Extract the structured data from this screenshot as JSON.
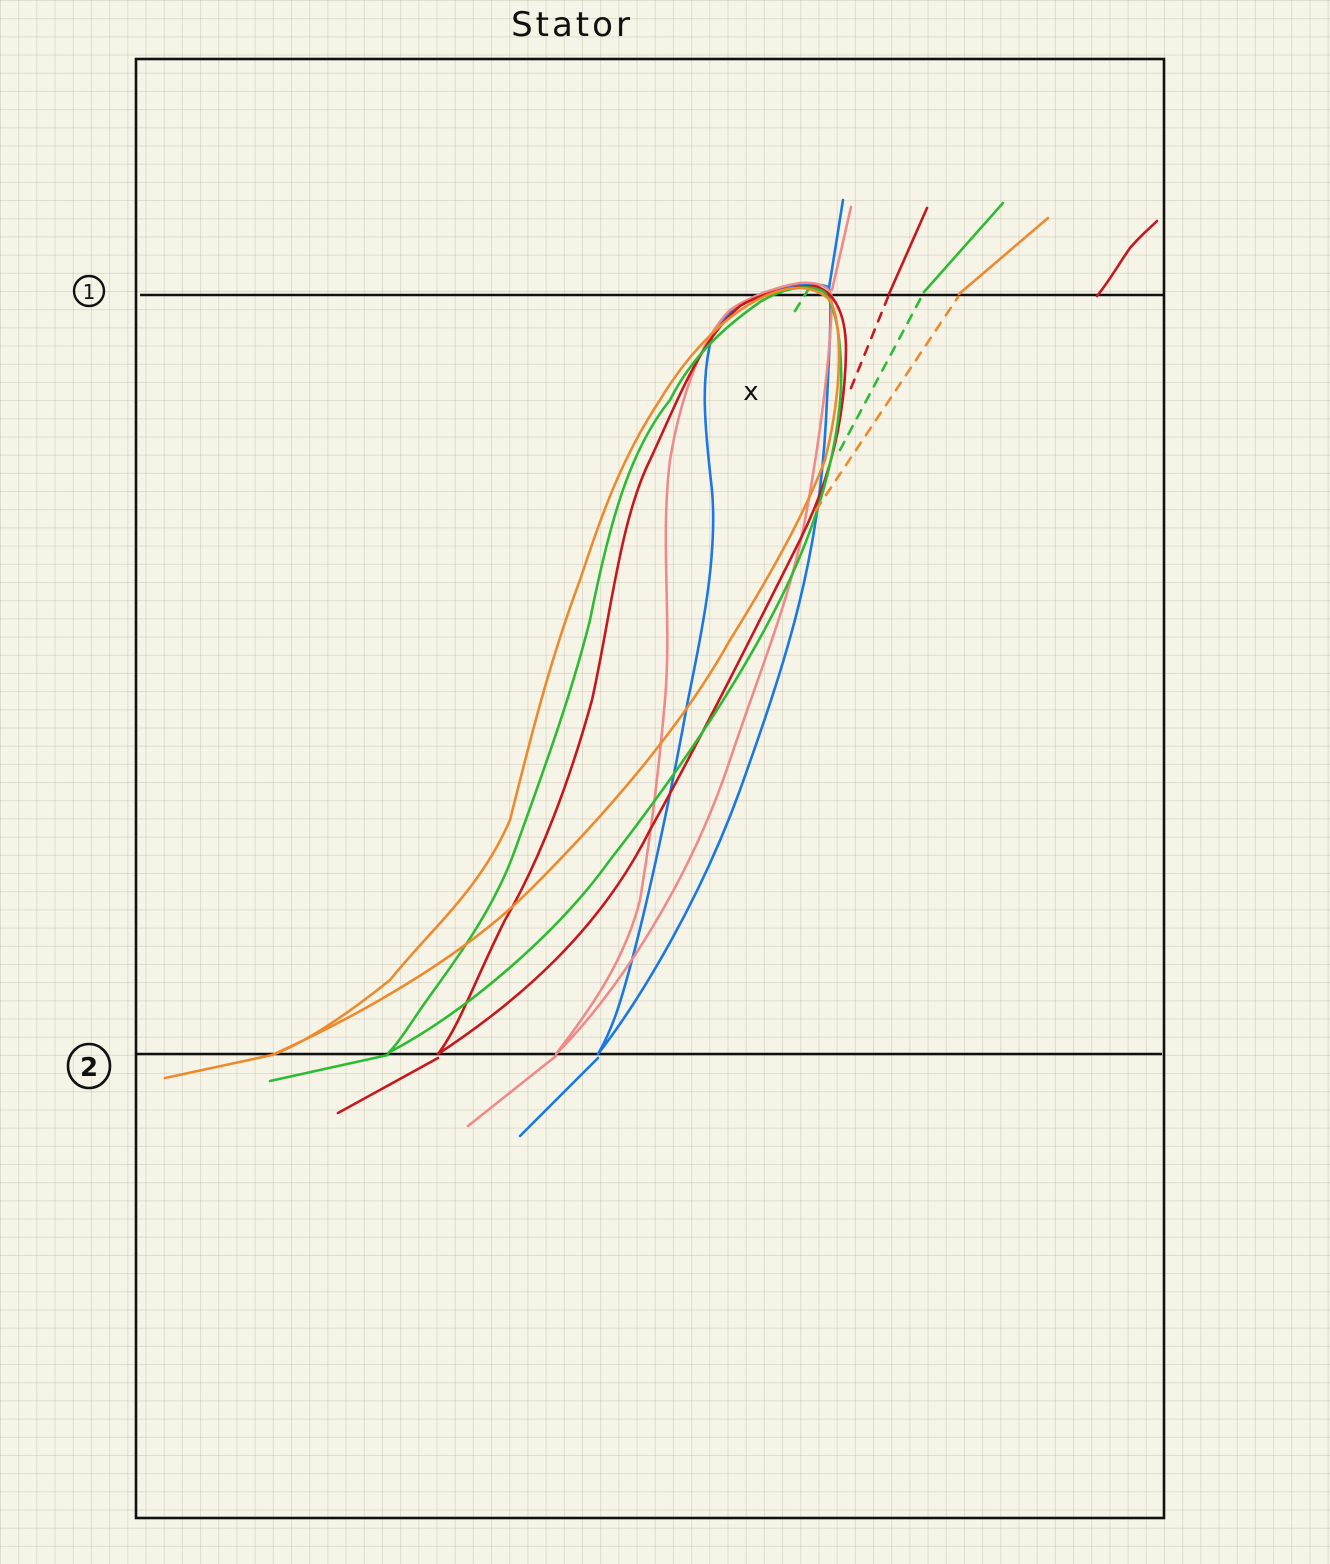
{
  "title": "Stator",
  "station_labels": {
    "one": "1",
    "two": "2"
  },
  "marker_label": "x",
  "colors": {
    "frame": "#111111",
    "blue": "#1a78e6",
    "pink": "#f08a8a",
    "red": "#c8161d",
    "green": "#2dbb34",
    "orange": "#ee8a2e",
    "paper": "#f6f4e7"
  }
}
